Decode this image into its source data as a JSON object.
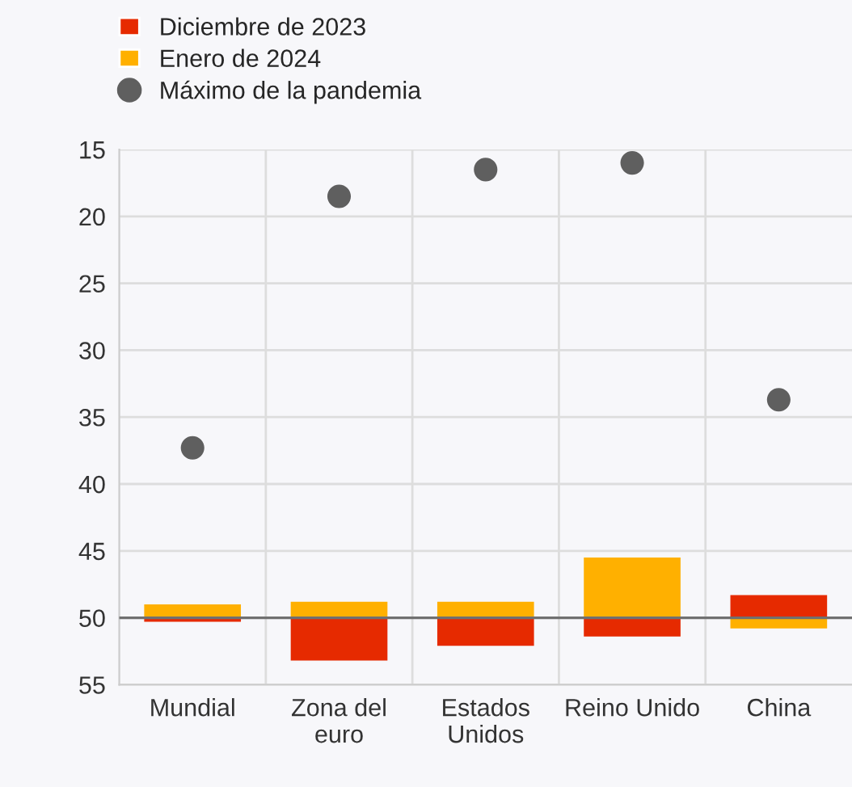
{
  "chart_data": {
    "type": "bar",
    "categories": [
      "Mundial",
      "Zona del\neuro",
      "Estados\nUnidos",
      "Reino Unido",
      "China"
    ],
    "series": [
      {
        "name": "Diciembre de 2023",
        "color": "#e62a00",
        "base": [
          50,
          50,
          50,
          50,
          50
        ],
        "values": [
          0.3,
          3.2,
          2.1,
          1.4,
          -1.7
        ]
      },
      {
        "name": "Enero de 2024",
        "color": "#ffb000",
        "base": [
          50,
          50,
          50,
          50,
          50
        ],
        "values": [
          -1.0,
          -1.2,
          -1.2,
          -4.5,
          0.8
        ]
      },
      {
        "name": "Máximo de la pandemia",
        "type": "scatter",
        "color": "#5f5f5f",
        "x": [
          "Mundial",
          "Zona del\neuro",
          "Estados\nUnidos",
          "Reino Unido",
          "China"
        ],
        "values": [
          37.3,
          18.5,
          16.5,
          16.0,
          33.7
        ]
      }
    ],
    "ylim": [
      55,
      15
    ],
    "yticks": [
      15,
      20,
      25,
      30,
      35,
      40,
      45,
      50,
      55
    ],
    "ref_lines": [
      {
        "axis": "y",
        "value": 50,
        "color": "#707070"
      }
    ],
    "grid": true,
    "legend": "top left",
    "marker": "circle"
  }
}
